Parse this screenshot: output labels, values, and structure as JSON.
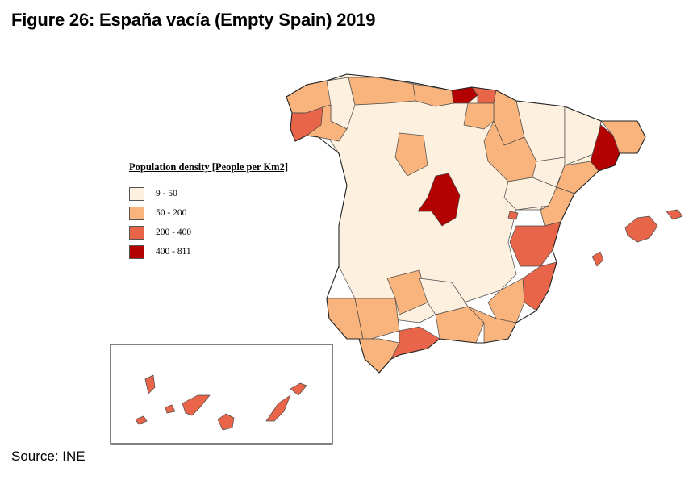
{
  "title": "Figure 26: España vacía (Empty Spain) 2019",
  "source": "Source: INE",
  "legend": {
    "title": "Population density [People per Km2]",
    "items": [
      {
        "label": "9 - 50",
        "color": "#fdf0de"
      },
      {
        "label": "50 - 200",
        "color": "#f8b47c"
      },
      {
        "label": "200 - 400",
        "color": "#e8654a"
      },
      {
        "label": "400 - 811",
        "color": "#b30000"
      }
    ]
  },
  "regions": {
    "pontevedra-coruna-west": "#e8654a",
    "madrid": "#b30000",
    "barcelona": "#b30000",
    "bizkaia": "#b30000",
    "gipuzkoa": "#e8654a",
    "valencia": "#e8654a",
    "alicante": "#e8654a",
    "malaga": "#e8654a",
    "baleares": "#e8654a",
    "canarias": "#e8654a"
  }
}
